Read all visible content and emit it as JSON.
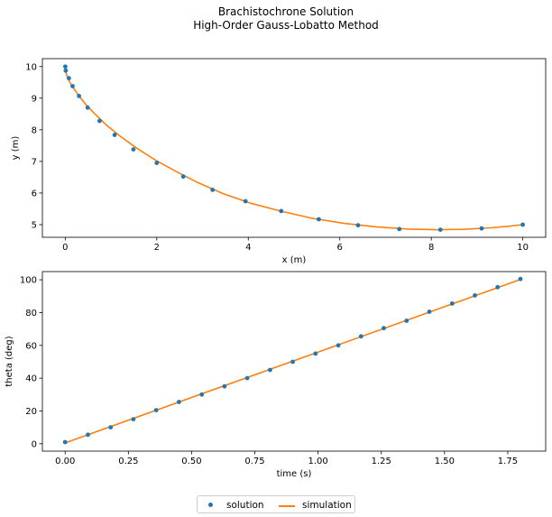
{
  "figure": {
    "title_line1": "Brachistochrone Solution",
    "title_line2": "High-Order Gauss-Lobatto Method"
  },
  "legend": {
    "solution_label": "solution",
    "simulation_label": "simulation"
  },
  "colors": {
    "solution": "#1f77b4",
    "simulation": "#ff7f0e"
  },
  "chart_data": [
    {
      "type": "line",
      "xlabel": "x (m)",
      "ylabel": "y (m)",
      "xlim": [
        -0.5,
        10.5
      ],
      "ylim": [
        4.6,
        10.25
      ],
      "xticks": [
        0,
        2,
        4,
        6,
        8,
        10
      ],
      "yticks": [
        5,
        6,
        7,
        8,
        9,
        10
      ],
      "grid": false,
      "series": [
        {
          "name": "solution",
          "style": "markers",
          "x": [
            0.0,
            0.01,
            0.08,
            0.16,
            0.3,
            0.49,
            0.75,
            1.08,
            1.49,
            2.0,
            2.58,
            3.22,
            3.94,
            4.72,
            5.54,
            6.4,
            7.3,
            8.2,
            9.1,
            10.0
          ],
          "y": [
            10.0,
            9.87,
            9.63,
            9.38,
            9.07,
            8.7,
            8.28,
            7.84,
            7.38,
            6.95,
            6.52,
            6.1,
            5.74,
            5.43,
            5.17,
            4.98,
            4.86,
            4.84,
            4.88,
            5.0
          ]
        },
        {
          "name": "simulation",
          "style": "line",
          "x": [
            0.0,
            0.005,
            0.02,
            0.05,
            0.1,
            0.18,
            0.3,
            0.45,
            0.65,
            0.9,
            1.2,
            1.55,
            1.95,
            2.4,
            2.9,
            3.45,
            4.05,
            4.7,
            5.4,
            6.1,
            6.8,
            7.5,
            8.1,
            8.7,
            9.3,
            9.7,
            10.0
          ],
          "y": [
            10.0,
            9.88,
            9.78,
            9.66,
            9.5,
            9.32,
            9.07,
            8.8,
            8.5,
            8.15,
            7.8,
            7.43,
            7.06,
            6.7,
            6.33,
            5.98,
            5.68,
            5.43,
            5.2,
            5.04,
            4.93,
            4.86,
            4.84,
            4.85,
            4.9,
            4.95,
            5.0
          ]
        }
      ]
    },
    {
      "type": "line",
      "xlabel": "time (s)",
      "ylabel": "theta (deg)",
      "xlim": [
        -0.09,
        1.9
      ],
      "ylim": [
        -4.5,
        105
      ],
      "xticks": [
        0.0,
        0.25,
        0.5,
        0.75,
        1.0,
        1.25,
        1.5,
        1.75
      ],
      "xtick_labels": [
        "0.00",
        "0.25",
        "0.50",
        "0.75",
        "1.00",
        "1.25",
        "1.50",
        "1.75"
      ],
      "yticks": [
        0,
        20,
        40,
        60,
        80,
        100
      ],
      "grid": false,
      "series": [
        {
          "name": "solution",
          "style": "markers",
          "x": [
            0.0,
            0.09,
            0.18,
            0.27,
            0.36,
            0.45,
            0.54,
            0.63,
            0.72,
            0.81,
            0.9,
            0.99,
            1.08,
            1.17,
            1.26,
            1.35,
            1.44,
            1.53,
            1.62,
            1.71,
            1.8
          ],
          "y": [
            1.0,
            5.5,
            10.0,
            15.0,
            20.5,
            25.5,
            30.0,
            35.0,
            40.0,
            45.0,
            50.0,
            55.0,
            60.0,
            65.5,
            70.5,
            75.0,
            80.5,
            85.5,
            90.5,
            95.5,
            100.5
          ]
        },
        {
          "name": "simulation",
          "style": "line",
          "x": [
            0.0,
            1.805
          ],
          "y": [
            0.5,
            100.5
          ]
        }
      ]
    }
  ]
}
